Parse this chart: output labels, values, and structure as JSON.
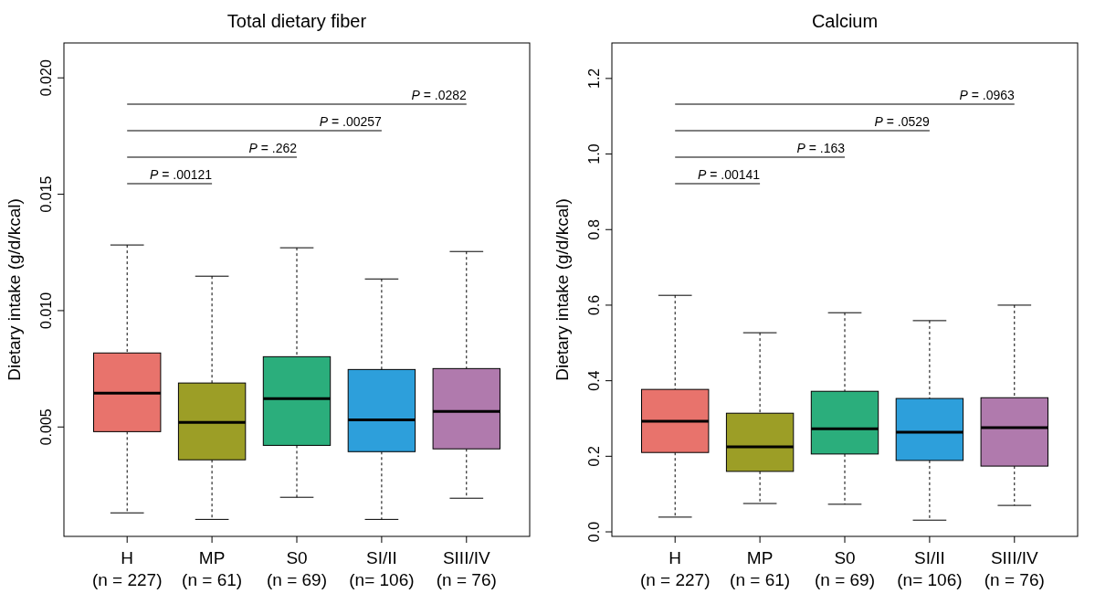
{
  "chart_data": [
    {
      "type": "box",
      "title": "Total dietary fiber",
      "ylabel": "Dietary intake (g/d/kcal)",
      "categories": [
        "H\n(n = 227)",
        "MP\n(n = 61)",
        "S0\n(n = 69)",
        "SI/II\n(n= 106)",
        "SIII/IV\n(n = 76)"
      ],
      "colors": [
        "#e8736c",
        "#9c9e26",
        "#2bae7c",
        "#2d9fdb",
        "#b07aad"
      ],
      "boxes": [
        {
          "low": 0.00131,
          "q1": 0.0048,
          "median": 0.00645,
          "q3": 0.00818,
          "high": 0.01282
        },
        {
          "low": 0.00103,
          "q1": 0.00359,
          "median": 0.0052,
          "q3": 0.00689,
          "high": 0.01148
        },
        {
          "low": 0.00198,
          "q1": 0.00421,
          "median": 0.00622,
          "q3": 0.00802,
          "high": 0.0127
        },
        {
          "low": 0.00103,
          "q1": 0.00394,
          "median": 0.00531,
          "q3": 0.00747,
          "high": 0.01136
        },
        {
          "low": 0.00194,
          "q1": 0.00406,
          "median": 0.00567,
          "q3": 0.00751,
          "high": 0.01254
        }
      ],
      "ylim": [
        0.0003,
        0.0215
      ],
      "yticks": [
        {
          "value": 0.005,
          "label": "0.005"
        },
        {
          "value": 0.01,
          "label": "0.010"
        },
        {
          "value": 0.015,
          "label": "0.015"
        },
        {
          "value": 0.02,
          "label": "0.020"
        }
      ],
      "annotations": [
        "P = .00121",
        "P = .262",
        "P = .00257",
        "P = .0282"
      ]
    },
    {
      "type": "box",
      "title": "Calcium",
      "ylabel": "Dietary intake (g/d/kcal)",
      "categories": [
        "H\n(n = 227)",
        "MP\n(n = 61)",
        "S0\n(n = 69)",
        "SI/II\n(n= 106)",
        "SIII/IV\n(n = 76)"
      ],
      "colors": [
        "#e8736c",
        "#9c9e26",
        "#2bae7c",
        "#2d9fdb",
        "#b07aad"
      ],
      "boxes": [
        {
          "low": 0.039,
          "q1": 0.21,
          "median": 0.293,
          "q3": 0.377,
          "high": 0.626
        },
        {
          "low": 0.075,
          "q1": 0.16,
          "median": 0.225,
          "q3": 0.314,
          "high": 0.527
        },
        {
          "low": 0.073,
          "q1": 0.206,
          "median": 0.273,
          "q3": 0.372,
          "high": 0.58
        },
        {
          "low": 0.031,
          "q1": 0.189,
          "median": 0.264,
          "q3": 0.353,
          "high": 0.559
        },
        {
          "low": 0.07,
          "q1": 0.174,
          "median": 0.276,
          "q3": 0.355,
          "high": 0.6
        }
      ],
      "ylim": [
        -0.012,
        1.294
      ],
      "yticks": [
        {
          "value": 0,
          "label": "0.0"
        },
        {
          "value": 0.2,
          "label": "0.2"
        },
        {
          "value": 0.4,
          "label": "0.4"
        },
        {
          "value": 0.6,
          "label": "0.6"
        },
        {
          "value": 0.8,
          "label": "0.8"
        },
        {
          "value": 1,
          "label": "1.0"
        },
        {
          "value": 1.2,
          "label": "1.2"
        }
      ],
      "annotations": [
        "P = .00141",
        "P = .163",
        "P = .0529",
        "P = .0963"
      ]
    }
  ]
}
